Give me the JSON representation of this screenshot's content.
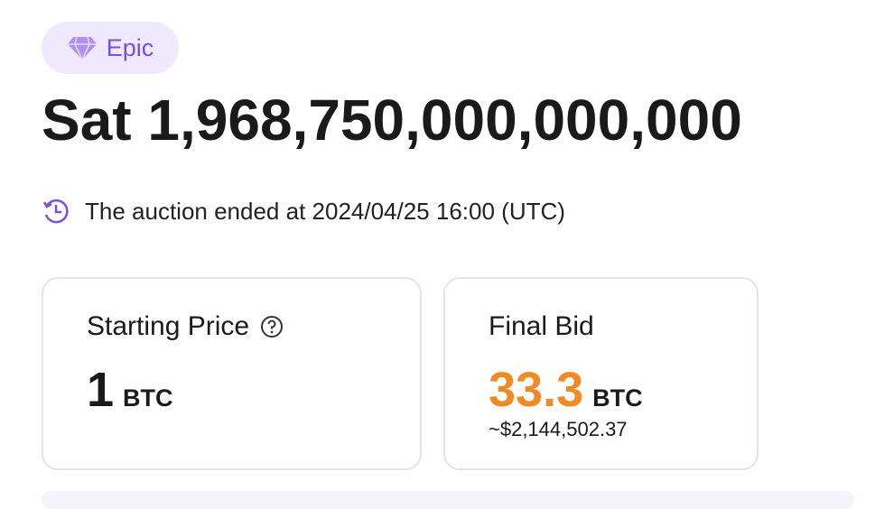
{
  "badge": "Epic",
  "title": "Sat 1,968,750,000,000,000",
  "auction_status": "The auction ended at 2024/04/25 16:00 (UTC)",
  "cards": [
    {
      "label": "Starting Price",
      "amount": "1",
      "unit": "BTC"
    },
    {
      "label": "Final Bid",
      "amount": "33.3",
      "unit": "BTC",
      "usd": "~$2,144,502.37"
    }
  ]
}
